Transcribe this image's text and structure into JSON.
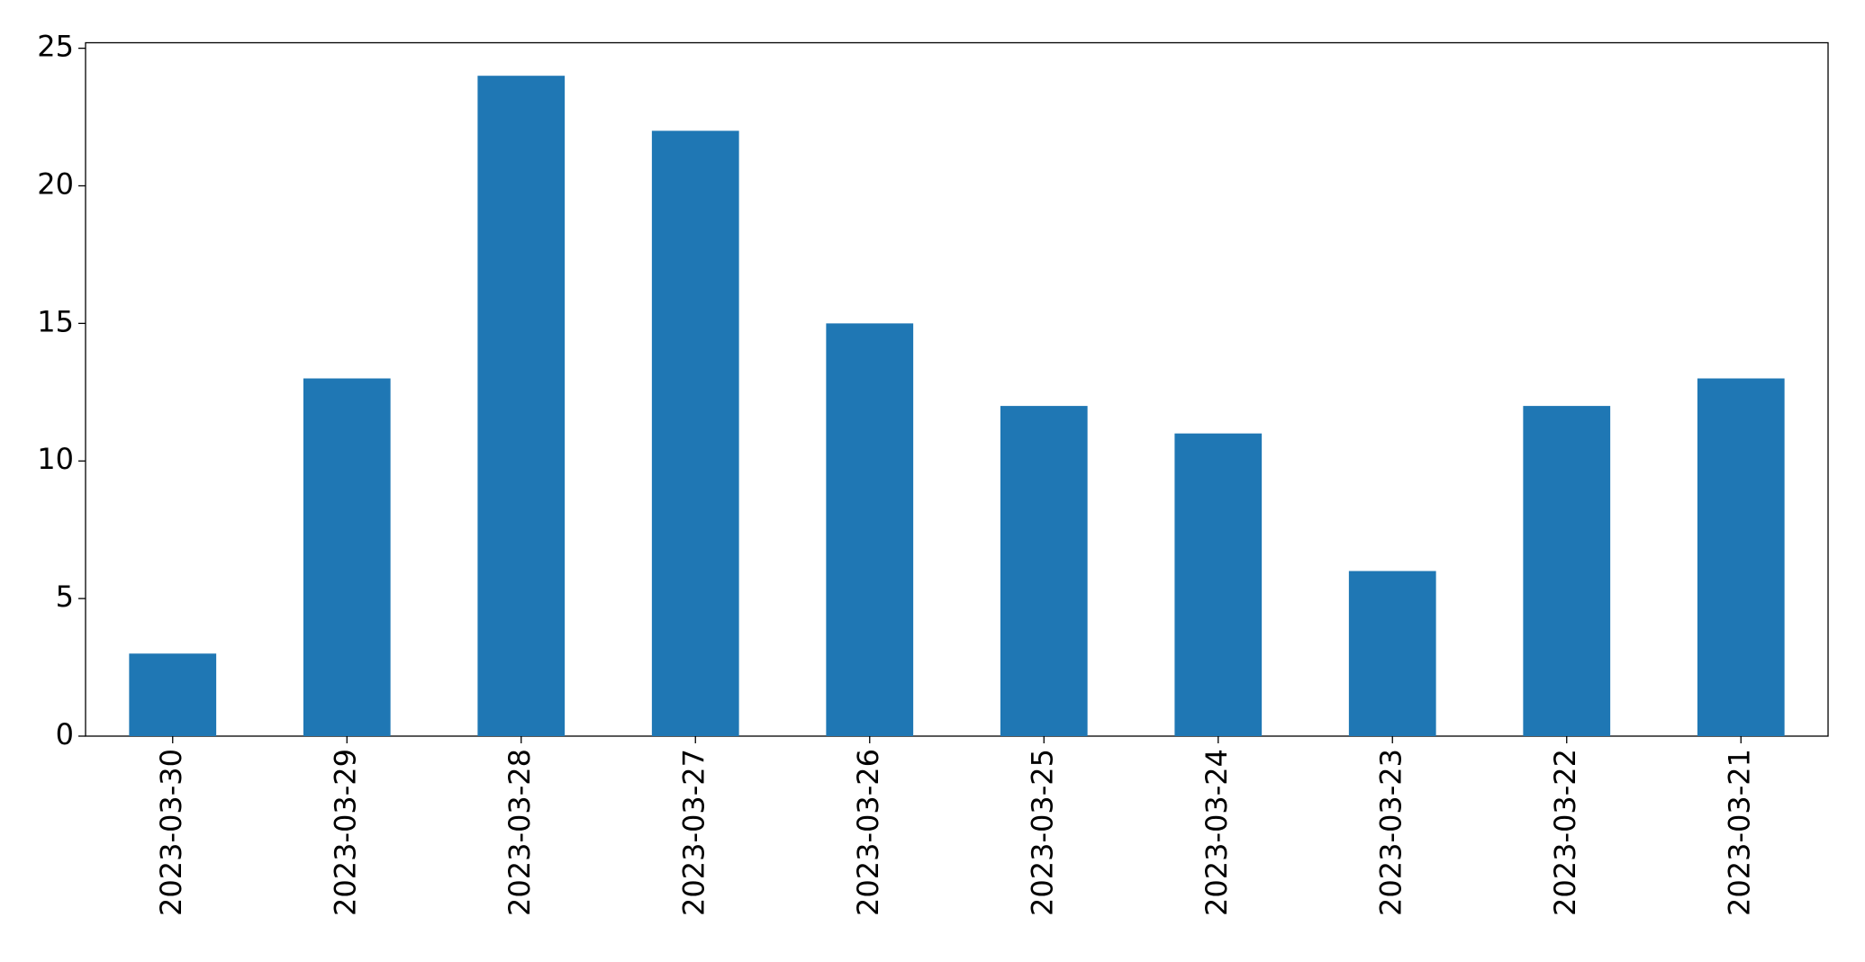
{
  "chart_data": {
    "type": "bar",
    "categories": [
      "2023-03-30",
      "2023-03-29",
      "2023-03-28",
      "2023-03-27",
      "2023-03-26",
      "2023-03-25",
      "2023-03-24",
      "2023-03-23",
      "2023-03-22",
      "2023-03-21"
    ],
    "values": [
      3,
      13,
      24,
      22,
      15,
      12,
      11,
      6,
      12,
      13
    ],
    "color": "#1f77b4",
    "ylim": [
      0,
      25.2
    ],
    "yticks": [
      0,
      5,
      10,
      15,
      20,
      25
    ],
    "grid": false
  }
}
